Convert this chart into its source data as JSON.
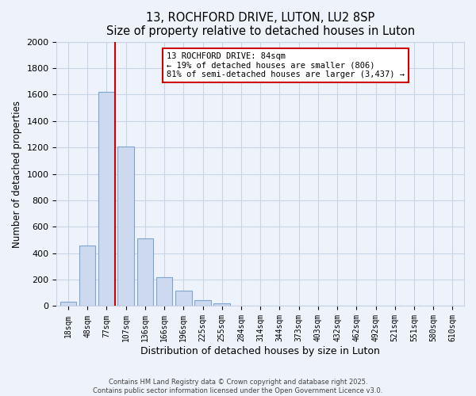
{
  "title": "13, ROCHFORD DRIVE, LUTON, LU2 8SP",
  "subtitle": "Size of property relative to detached houses in Luton",
  "xlabel": "Distribution of detached houses by size in Luton",
  "ylabel": "Number of detached properties",
  "bar_labels": [
    "18sqm",
    "48sqm",
    "77sqm",
    "107sqm",
    "136sqm",
    "166sqm",
    "196sqm",
    "225sqm",
    "255sqm",
    "284sqm",
    "314sqm",
    "344sqm",
    "373sqm",
    "403sqm",
    "432sqm",
    "462sqm",
    "492sqm",
    "521sqm",
    "551sqm",
    "580sqm",
    "610sqm"
  ],
  "bar_values": [
    35,
    460,
    1620,
    1210,
    510,
    220,
    115,
    45,
    20,
    5,
    0,
    0,
    0,
    0,
    0,
    0,
    0,
    0,
    0,
    0,
    0
  ],
  "bar_color": "#ccd9ee",
  "bar_edge_color": "#7ba7d0",
  "property_line_color": "#cc0000",
  "annotation_title": "13 ROCHFORD DRIVE: 84sqm",
  "annotation_line1": "← 19% of detached houses are smaller (806)",
  "annotation_line2": "81% of semi-detached houses are larger (3,437) →",
  "annotation_box_color": "#ffffff",
  "annotation_box_edge": "#cc0000",
  "ylim": [
    0,
    2000
  ],
  "yticks": [
    0,
    200,
    400,
    600,
    800,
    1000,
    1200,
    1400,
    1600,
    1800,
    2000
  ],
  "grid_color": "#c8d4e8",
  "background_color": "#eef2fb",
  "footer_line1": "Contains HM Land Registry data © Crown copyright and database right 2025.",
  "footer_line2": "Contains public sector information licensed under the Open Government Licence v3.0."
}
